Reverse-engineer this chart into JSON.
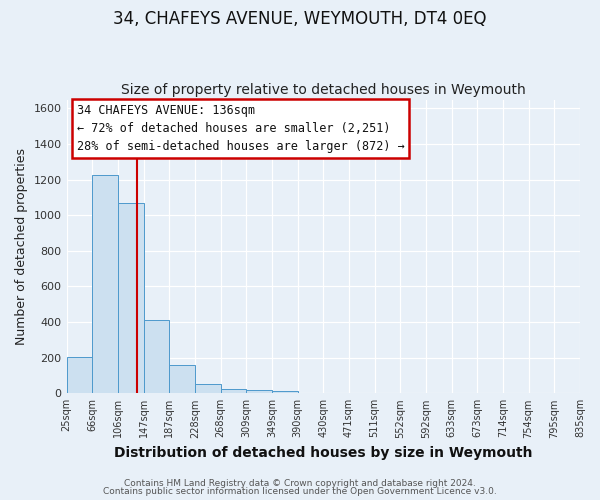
{
  "title": "34, CHAFEYS AVENUE, WEYMOUTH, DT4 0EQ",
  "subtitle": "Size of property relative to detached houses in Weymouth",
  "xlabel": "Distribution of detached houses by size in Weymouth",
  "ylabel": "Number of detached properties",
  "bar_values": [
    205,
    1225,
    1070,
    410,
    160,
    55,
    25,
    20,
    15,
    0,
    0,
    0,
    0,
    0,
    0,
    0,
    0,
    0,
    0,
    0
  ],
  "bin_labels": [
    "25sqm",
    "66sqm",
    "106sqm",
    "147sqm",
    "187sqm",
    "228sqm",
    "268sqm",
    "309sqm",
    "349sqm",
    "390sqm",
    "430sqm",
    "471sqm",
    "511sqm",
    "552sqm",
    "592sqm",
    "633sqm",
    "673sqm",
    "714sqm",
    "754sqm",
    "795sqm",
    "835sqm"
  ],
  "bar_color": "#cce0f0",
  "bar_edge_color": "#4d99cc",
  "vline_color": "#cc0000",
  "ylim": [
    0,
    1650
  ],
  "yticks": [
    0,
    200,
    400,
    600,
    800,
    1000,
    1200,
    1400,
    1600
  ],
  "annotation_title": "34 CHAFEYS AVENUE: 136sqm",
  "annotation_line1": "← 72% of detached houses are smaller (2,251)",
  "annotation_line2": "28% of semi-detached houses are larger (872) →",
  "annotation_box_color": "#ffffff",
  "annotation_box_edge": "#cc0000",
  "background_color": "#e8f0f8",
  "footer_line1": "Contains HM Land Registry data © Crown copyright and database right 2024.",
  "footer_line2": "Contains public sector information licensed under the Open Government Licence v3.0.",
  "grid_color": "#ffffff",
  "title_fontsize": 12,
  "subtitle_fontsize": 10
}
